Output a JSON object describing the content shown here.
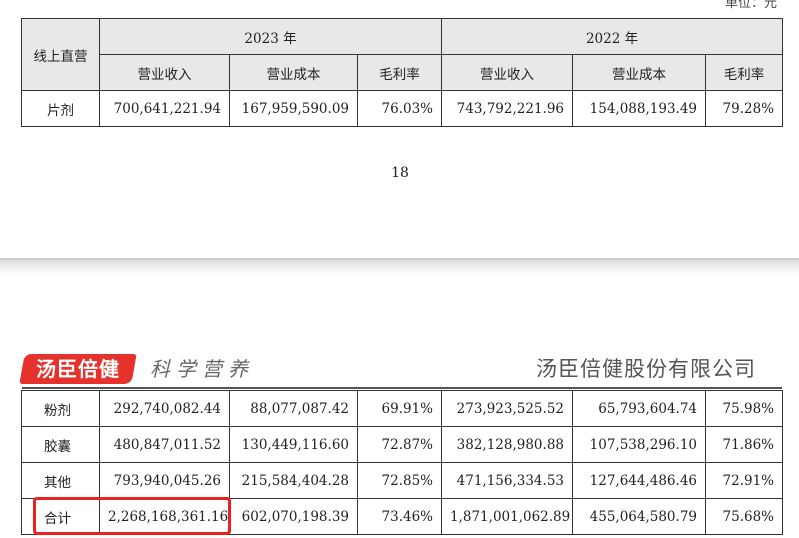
{
  "unit_label": "单位：元",
  "top_table": {
    "channel_header": "线上直营",
    "years": [
      "2023 年",
      "2022 年"
    ],
    "columns": [
      "营业收入",
      "营业成本",
      "毛利率",
      "营业收入",
      "营业成本",
      "毛利率"
    ],
    "rows": [
      {
        "category": "片剂",
        "values": [
          "700,641,221.94",
          "167,959,590.09",
          "76.03%",
          "743,792,221.96",
          "154,088,193.49",
          "79.28%"
        ]
      }
    ]
  },
  "page_number": "18",
  "brand": {
    "logo_text": "汤臣倍健",
    "slogan": "科学营养",
    "company_name": "汤臣倍健股份有限公司"
  },
  "bottom_table": {
    "rows": [
      {
        "category": "粉剂",
        "values": [
          "292,740,082.44",
          "88,077,087.42",
          "69.91%",
          "273,923,525.52",
          "65,793,604.74",
          "75.98%"
        ]
      },
      {
        "category": "胶囊",
        "values": [
          "480,847,011.52",
          "130,449,116.60",
          "72.87%",
          "382,128,980.88",
          "107,538,296.10",
          "71.86%"
        ]
      },
      {
        "category": "其他",
        "values": [
          "793,940,045.26",
          "215,584,404.28",
          "72.85%",
          "471,156,334.53",
          "127,644,486.46",
          "72.91%"
        ]
      },
      {
        "category": "合计",
        "values": [
          "2,268,168,361.16",
          "602,070,198.39",
          "73.46%",
          "1,871,001,062.89",
          "455,064,580.79",
          "75.68%"
        ]
      }
    ]
  },
  "colors": {
    "highlight": "#e8231f",
    "logo_background": "#e5322d",
    "header_background": "#e8e8e8"
  }
}
